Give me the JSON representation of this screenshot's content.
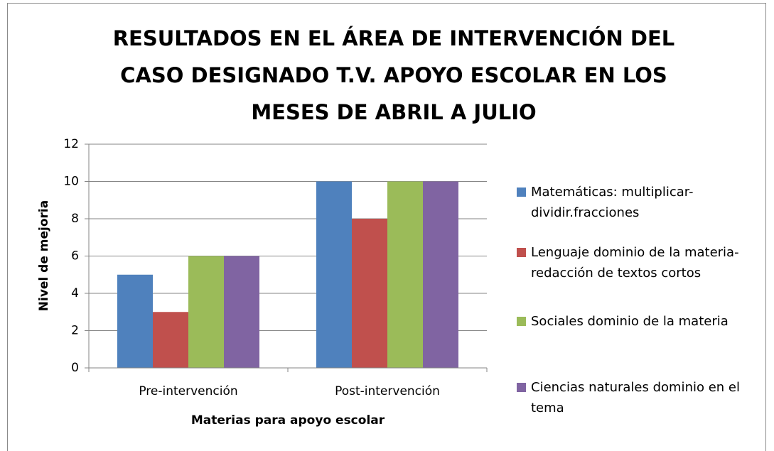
{
  "chart_data": {
    "type": "bar",
    "title": "RESULTADOS EN EL ÁREA DE INTERVENCIÓN DEL CASO DESIGNADO T.V. APOYO ESCOLAR EN LOS MESES DE ABRIL A JULIO",
    "x_label": "Materias para apoyo escolar",
    "y_label": "Nivel de mejoria",
    "categories": [
      "Pre-intervención",
      "Post-intervención"
    ],
    "series": [
      {
        "name": "Matemáticas: multiplicar-dividir.fracciones",
        "color": "#4f81bd",
        "values": [
          5,
          10
        ]
      },
      {
        "name": "Lenguaje dominio de la materia-redacción de textos cortos",
        "color": "#c0504d",
        "values": [
          3,
          8
        ]
      },
      {
        "name": "Sociales dominio de la materia",
        "color": "#9bbb59",
        "values": [
          6,
          10
        ]
      },
      {
        "name": "Ciencias naturales dominio en el tema",
        "color": "#8064a2",
        "values": [
          6,
          10
        ]
      }
    ],
    "ylim": [
      0,
      12
    ],
    "yticks": [
      0,
      2,
      4,
      6,
      8,
      10,
      12
    ],
    "grid": true,
    "legend": "right"
  }
}
